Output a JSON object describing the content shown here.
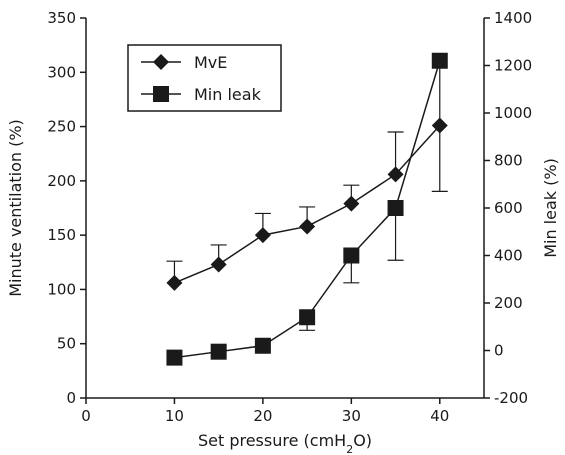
{
  "chart_data": {
    "type": "line",
    "title": "",
    "xlabel": "Set pressure (cmH2O)",
    "xlabel_parts": {
      "pre": "Set pressure (cmH",
      "sub": "2",
      "post": "O)"
    },
    "ylabel_left": "Minute ventilation (%)",
    "ylabel_right": "Min leak (%)",
    "xlim": [
      0,
      45
    ],
    "ylim_left": [
      0,
      350
    ],
    "ylim_right": [
      -200,
      1400
    ],
    "x_ticks": [
      0,
      10,
      20,
      30,
      40
    ],
    "y_left_ticks": [
      0,
      50,
      100,
      150,
      200,
      250,
      300,
      350
    ],
    "y_right_ticks": [
      -200,
      0,
      200,
      400,
      600,
      800,
      1000,
      1200,
      1400
    ],
    "grid": false,
    "legend_position": "top-left",
    "series": [
      {
        "name": "MvE",
        "axis": "left",
        "marker": "diamond",
        "color": "#1a1a1a",
        "x": [
          10,
          15,
          20,
          25,
          30,
          35,
          40
        ],
        "y": [
          106,
          123,
          150,
          158,
          179,
          206,
          251
        ],
        "error_upper": [
          126,
          141,
          170,
          176,
          196,
          245,
          251
        ]
      },
      {
        "name": "Min leak",
        "axis": "right",
        "marker": "square",
        "color": "#1a1a1a",
        "x": [
          10,
          15,
          20,
          25,
          30,
          35,
          40
        ],
        "y": [
          -30,
          -5,
          20,
          140,
          400,
          600,
          1220
        ],
        "error_upper": [
          -30,
          -5,
          20,
          140,
          400,
          600,
          1220
        ],
        "error_lower": [
          -30,
          -5,
          20,
          85,
          285,
          380,
          670
        ]
      }
    ]
  }
}
